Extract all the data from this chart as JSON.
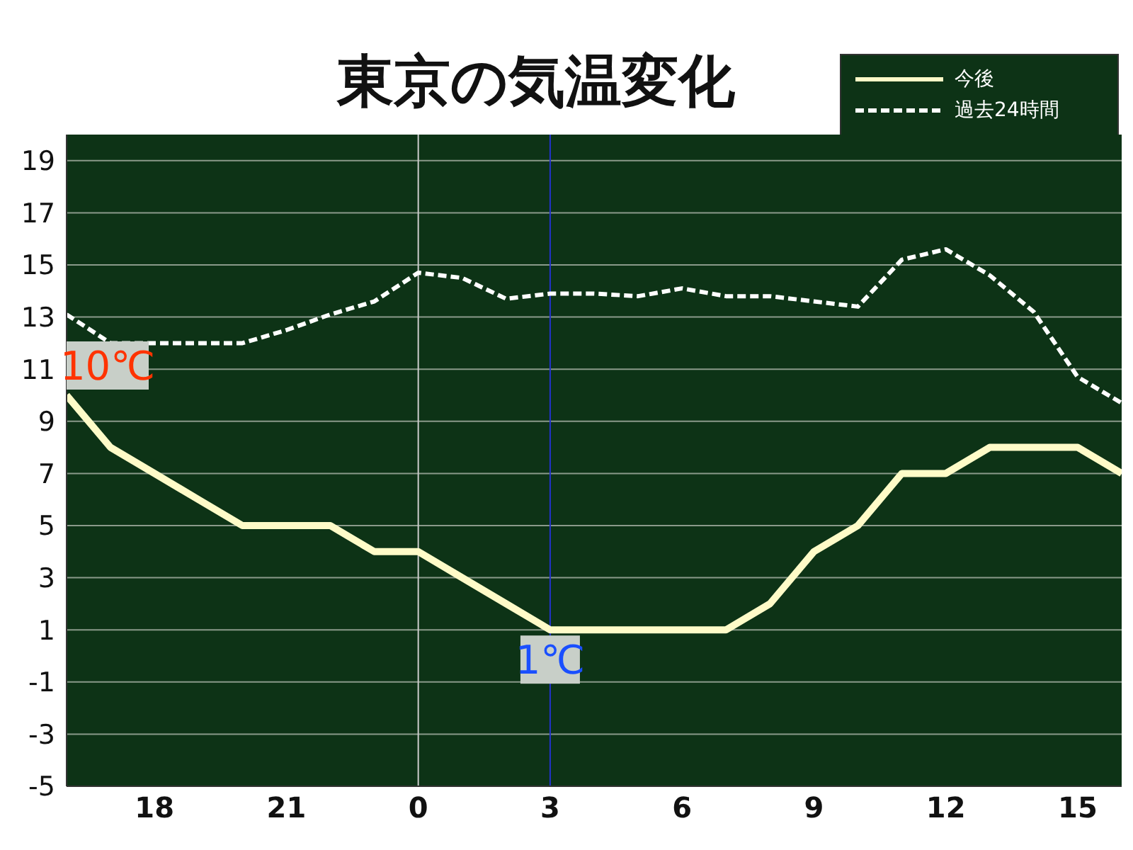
{
  "chart_data": {
    "type": "line",
    "title": "東京の気温変化",
    "categories": [
      null,
      null,
      "18",
      null,
      null,
      "21",
      null,
      null,
      "0",
      null,
      null,
      "3",
      null,
      null,
      "6",
      null,
      null,
      "9",
      null,
      null,
      "12",
      null,
      null,
      "15",
      null
    ],
    "series": [
      {
        "name": "今後",
        "color": "#fffbc8",
        "line_style": "solid",
        "values": [
          10,
          8,
          7,
          6,
          5,
          5,
          5,
          4,
          4,
          3,
          2,
          1,
          1,
          1,
          1,
          1,
          2,
          4,
          5,
          7,
          7,
          8,
          8,
          8,
          7
        ]
      },
      {
        "name": "過去24時間",
        "color": "#ffffff",
        "line_style": "dashed",
        "values": [
          13.1,
          12,
          12,
          12,
          12,
          12.5,
          13.1,
          13.6,
          14.7,
          14.5,
          13.7,
          13.9,
          13.9,
          13.8,
          14.1,
          13.8,
          13.8,
          13.6,
          13.4,
          15.2,
          15.6,
          14.6,
          13.2,
          10.7,
          9.7
        ]
      }
    ],
    "ylim": [
      -5,
      20
    ],
    "yticks": [
      -5,
      -3,
      -1,
      1,
      3,
      5,
      7,
      9,
      11,
      13,
      15,
      17,
      19
    ],
    "grid": "y",
    "legend": "top right",
    "marker": "none",
    "ref_lines": [
      {
        "axis": "x",
        "value": "0",
        "color": "#cccccc"
      },
      {
        "axis": "x",
        "value": "3",
        "color": "#2233cc"
      }
    ],
    "annotations": [
      "10℃",
      {
        "text": "1℃",
        "x": "3",
        "y": 1
      }
    ]
  }
}
